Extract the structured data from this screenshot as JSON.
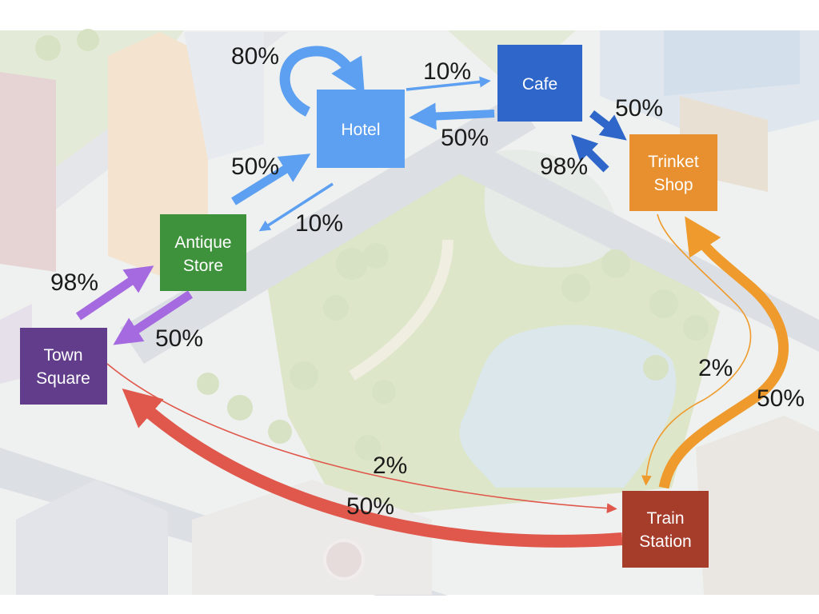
{
  "nodes": {
    "hotel": {
      "label": [
        "Hotel"
      ],
      "color": "#5d9ff0"
    },
    "cafe": {
      "label": [
        "Cafe"
      ],
      "color": "#2f66c9"
    },
    "trinket": {
      "label": [
        "Trinket",
        "Shop"
      ],
      "color": "#e8902f"
    },
    "antique": {
      "label": [
        "Antique",
        "Store"
      ],
      "color": "#3f923c"
    },
    "town": {
      "label": [
        "Town",
        "Square"
      ],
      "color": "#613d8c"
    },
    "train": {
      "label": [
        "Train",
        "Station"
      ],
      "color": "#a63c2a"
    }
  },
  "transitions": {
    "hotel_hotel": "80%",
    "hotel_cafe": "10%",
    "cafe_hotel": "50%",
    "cafe_trinket": "50%",
    "trinket_cafe": "98%",
    "antique_hotel": "50%",
    "hotel_antique": "10%",
    "town_antique": "98%",
    "antique_town": "50%",
    "trinket_train": "2%",
    "train_trinket": "50%",
    "town_train": "2%",
    "train_town": "50%"
  },
  "colors": {
    "hotel_arrow": "#5d9ff0",
    "cafe_arrow": "#2f66c9",
    "purple_arrow": "#a66ae0",
    "orange_arrow": "#ef9a2c",
    "red_arrow": "#e0574b"
  }
}
